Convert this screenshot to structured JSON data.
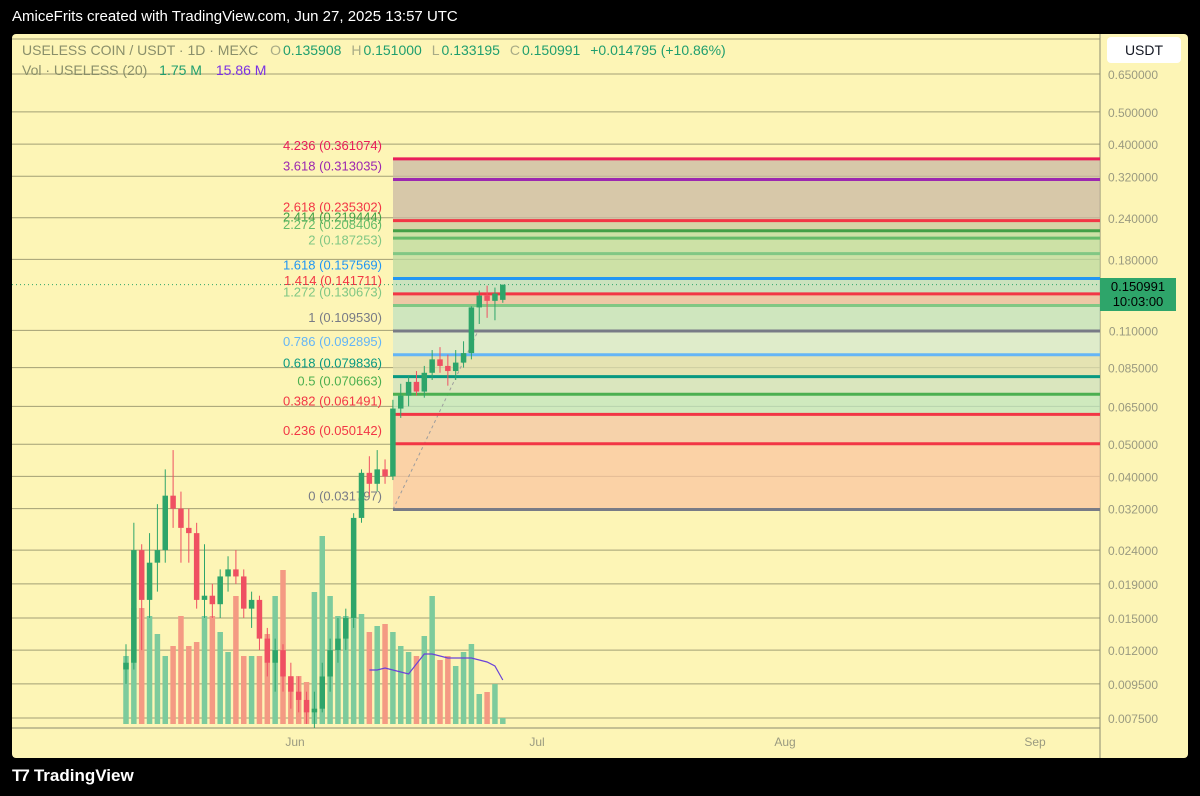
{
  "header": {
    "title": "AmiceFrits created with TradingView.com, Jun 27, 2025 13:57 UTC"
  },
  "footer": {
    "brand": "TradingView"
  },
  "legend": {
    "symbol": "USELESS COIN / USDT · 1D · MEXC",
    "o_label": "O",
    "o_value": "0.135908",
    "h_label": "H",
    "h_value": "0.151000",
    "l_label": "L",
    "l_value": "0.133195",
    "c_label": "C",
    "c_value": "0.150991",
    "change": "+0.014795 (+10.86%)",
    "vol_label": "Vol · USELESS (20)",
    "vol_value": "1.75 M",
    "vol_ma_value": "15.86 M"
  },
  "currency": "USDT",
  "price_tag": {
    "price": "0.150991",
    "countdown": "10:03:00"
  },
  "colors": {
    "background": "#fdf5b6",
    "up": "#2ea56a",
    "down": "#ef5062",
    "vol_up": "#7dcb9c",
    "vol_down": "#f49a83",
    "vol_ma": "#6a43d8"
  },
  "chart_data": {
    "type": "candlestick",
    "scale": "log",
    "y_ticks": [
      "0.650000",
      "0.500000",
      "0.400000",
      "0.320000",
      "0.240000",
      "0.180000",
      "0.110000",
      "0.085000",
      "0.065000",
      "0.050000",
      "0.040000",
      "0.032000",
      "0.024000",
      "0.019000",
      "0.015000",
      "0.012000",
      "0.009500",
      "0.007500"
    ],
    "x_ticks": [
      "Jun",
      "Jul",
      "Aug",
      "Sep"
    ],
    "fib_levels": [
      {
        "label": "4.236 (0.361074)",
        "price": 0.361074,
        "color": "#e91e5a"
      },
      {
        "label": "3.618 (0.313035)",
        "price": 0.313035,
        "color": "#9c27b0"
      },
      {
        "label": "2.618 (0.235302)",
        "price": 0.235302,
        "color": "#f23645"
      },
      {
        "label": "2.414 (0.219444)",
        "price": 0.219444,
        "color": "#43a047"
      },
      {
        "label": "2.272 (0.208406)",
        "price": 0.208406,
        "color": "#66bb6a"
      },
      {
        "label": "2 (0.187253)",
        "price": 0.187253,
        "color": "#81c784"
      },
      {
        "label": "1.618 (0.157569)",
        "price": 0.157569,
        "color": "#2196f3"
      },
      {
        "label": "1.414 (0.141711)",
        "price": 0.141711,
        "color": "#f23645"
      },
      {
        "label": "1.272 (0.130673)",
        "price": 0.130673,
        "color": "#81c784"
      },
      {
        "label": "1 (0.109530)",
        "price": 0.10953,
        "color": "#787b86"
      },
      {
        "label": "0.786 (0.092895)",
        "price": 0.092895,
        "color": "#64b5f6"
      },
      {
        "label": "0.618 (0.079836)",
        "price": 0.079836,
        "color": "#089981"
      },
      {
        "label": "0.5 (0.070663)",
        "price": 0.070663,
        "color": "#4caf50"
      },
      {
        "label": "0.382 (0.061491)",
        "price": 0.061491,
        "color": "#f23645"
      },
      {
        "label": "0.236 (0.050142)",
        "price": 0.050142,
        "color": "#f23645"
      },
      {
        "label": "0 (0.031797)",
        "price": 0.031797,
        "color": "#787b86"
      }
    ],
    "candles": [
      [
        0.0105,
        0.0125,
        0.0095,
        0.011
      ],
      [
        0.011,
        0.029,
        0.0105,
        0.024
      ],
      [
        0.024,
        0.025,
        0.012,
        0.017
      ],
      [
        0.017,
        0.027,
        0.015,
        0.022
      ],
      [
        0.022,
        0.033,
        0.018,
        0.024
      ],
      [
        0.024,
        0.042,
        0.022,
        0.035
      ],
      [
        0.035,
        0.048,
        0.028,
        0.032
      ],
      [
        0.032,
        0.036,
        0.022,
        0.028
      ],
      [
        0.028,
        0.032,
        0.022,
        0.027
      ],
      [
        0.027,
        0.029,
        0.016,
        0.017
      ],
      [
        0.017,
        0.025,
        0.015,
        0.0175
      ],
      [
        0.0175,
        0.019,
        0.015,
        0.0165
      ],
      [
        0.0165,
        0.021,
        0.015,
        0.02
      ],
      [
        0.02,
        0.023,
        0.018,
        0.021
      ],
      [
        0.021,
        0.024,
        0.019,
        0.02
      ],
      [
        0.02,
        0.021,
        0.015,
        0.016
      ],
      [
        0.016,
        0.018,
        0.014,
        0.017
      ],
      [
        0.017,
        0.0175,
        0.012,
        0.013
      ],
      [
        0.013,
        0.014,
        0.01,
        0.011
      ],
      [
        0.011,
        0.013,
        0.009,
        0.012
      ],
      [
        0.012,
        0.0125,
        0.009,
        0.01
      ],
      [
        0.01,
        0.011,
        0.008,
        0.009
      ],
      [
        0.009,
        0.01,
        0.0078,
        0.0085
      ],
      [
        0.0085,
        0.009,
        0.0072,
        0.0078
      ],
      [
        0.0078,
        0.009,
        0.007,
        0.008
      ],
      [
        0.008,
        0.011,
        0.0078,
        0.01
      ],
      [
        0.01,
        0.013,
        0.009,
        0.012
      ],
      [
        0.012,
        0.015,
        0.011,
        0.013
      ],
      [
        0.013,
        0.016,
        0.012,
        0.015
      ],
      [
        0.015,
        0.031,
        0.014,
        0.03
      ],
      [
        0.03,
        0.042,
        0.029,
        0.041
      ],
      [
        0.041,
        0.046,
        0.035,
        0.038
      ],
      [
        0.038,
        0.048,
        0.036,
        0.042
      ],
      [
        0.042,
        0.045,
        0.038,
        0.04
      ],
      [
        0.04,
        0.068,
        0.039,
        0.064
      ],
      [
        0.064,
        0.076,
        0.06,
        0.07
      ],
      [
        0.07,
        0.08,
        0.065,
        0.077
      ],
      [
        0.077,
        0.083,
        0.07,
        0.072
      ],
      [
        0.072,
        0.086,
        0.069,
        0.082
      ],
      [
        0.082,
        0.096,
        0.078,
        0.09
      ],
      [
        0.09,
        0.098,
        0.082,
        0.086
      ],
      [
        0.086,
        0.093,
        0.075,
        0.083
      ],
      [
        0.083,
        0.096,
        0.078,
        0.088
      ],
      [
        0.088,
        0.102,
        0.085,
        0.094
      ],
      [
        0.094,
        0.13,
        0.09,
        0.129
      ],
      [
        0.129,
        0.145,
        0.115,
        0.14
      ],
      [
        0.14,
        0.15,
        0.12,
        0.135
      ],
      [
        0.135,
        0.148,
        0.118,
        0.142
      ],
      [
        0.1359,
        0.151,
        0.1332,
        0.151
      ]
    ],
    "volume": [
      0.34,
      0.58,
      0.58,
      0.54,
      0.45,
      0.34,
      0.39,
      0.54,
      0.39,
      0.41,
      0.54,
      0.54,
      0.46,
      0.36,
      0.64,
      0.34,
      0.34,
      0.34,
      0.45,
      0.64,
      0.77,
      0.24,
      0.24,
      0.21,
      0.66,
      0.94,
      0.64,
      0.54,
      0.54,
      0.54,
      0.55,
      0.46,
      0.49,
      0.5,
      0.46,
      0.39,
      0.36,
      0.34,
      0.44,
      0.64,
      0.32,
      0.34,
      0.29,
      0.36,
      0.4,
      0.15,
      0.16,
      0.2,
      0.03
    ],
    "vol_ma": [
      0.27,
      0.27,
      0.28,
      0.27,
      0.26,
      0.25,
      0.3,
      0.35,
      0.35,
      0.34,
      0.33,
      0.33,
      0.33,
      0.33,
      0.32,
      0.31,
      0.29,
      0.22
    ]
  }
}
